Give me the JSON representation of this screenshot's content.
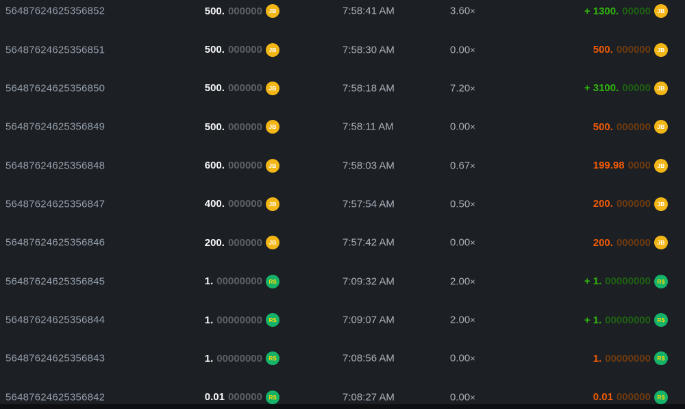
{
  "colors": {
    "background": "#1c1f24",
    "page_bottom": "#0d0f12",
    "id_text": "#96a0ab",
    "muted_text": "#a9b1ba",
    "bet_main": "#f5f6f7",
    "bet_zeros": "#5d6168",
    "win_main": "#30b50c",
    "win_dim": "#1e6212",
    "loss_main": "#f05a06",
    "loss_dim": "#6f3b10"
  },
  "currencies": {
    "jb": {
      "name": "jb-token",
      "label": "JB",
      "bg": "#f2b616",
      "fg": "#ffffff"
    },
    "brl": {
      "name": "brl-token",
      "label": "R$",
      "bg": "#15b369",
      "fg": "#ffd60a"
    }
  },
  "labels": {
    "multiplier_suffix": "×"
  },
  "table": {
    "rows": [
      {
        "id": "56487624625356852",
        "bet_main": "500.",
        "bet_zeros": "000000",
        "currency": "jb",
        "time": "7:58:41 AM",
        "multiplier": "3.60",
        "result": "win",
        "payout_main": "+ 1300.",
        "payout_zeros": "00000"
      },
      {
        "id": "56487624625356851",
        "bet_main": "500.",
        "bet_zeros": "000000",
        "currency": "jb",
        "time": "7:58:30 AM",
        "multiplier": "0.00",
        "result": "loss",
        "payout_main": "500.",
        "payout_zeros": "000000"
      },
      {
        "id": "56487624625356850",
        "bet_main": "500.",
        "bet_zeros": "000000",
        "currency": "jb",
        "time": "7:58:18 AM",
        "multiplier": "7.20",
        "result": "win",
        "payout_main": "+ 3100.",
        "payout_zeros": "00000"
      },
      {
        "id": "56487624625356849",
        "bet_main": "500.",
        "bet_zeros": "000000",
        "currency": "jb",
        "time": "7:58:11 AM",
        "multiplier": "0.00",
        "result": "loss",
        "payout_main": "500.",
        "payout_zeros": "000000"
      },
      {
        "id": "56487624625356848",
        "bet_main": "600.",
        "bet_zeros": "000000",
        "currency": "jb",
        "time": "7:58:03 AM",
        "multiplier": "0.67",
        "result": "loss",
        "payout_main": "199.98",
        "payout_zeros": "0000"
      },
      {
        "id": "56487624625356847",
        "bet_main": "400.",
        "bet_zeros": "000000",
        "currency": "jb",
        "time": "7:57:54 AM",
        "multiplier": "0.50",
        "result": "loss",
        "payout_main": "200.",
        "payout_zeros": "000000"
      },
      {
        "id": "56487624625356846",
        "bet_main": "200.",
        "bet_zeros": "000000",
        "currency": "jb",
        "time": "7:57:42 AM",
        "multiplier": "0.00",
        "result": "loss",
        "payout_main": "200.",
        "payout_zeros": "000000"
      },
      {
        "id": "56487624625356845",
        "bet_main": "1.",
        "bet_zeros": "00000000",
        "currency": "brl",
        "time": "7:09:32 AM",
        "multiplier": "2.00",
        "result": "win",
        "payout_main": "+ 1.",
        "payout_zeros": "00000000"
      },
      {
        "id": "56487624625356844",
        "bet_main": "1.",
        "bet_zeros": "00000000",
        "currency": "brl",
        "time": "7:09:07 AM",
        "multiplier": "2.00",
        "result": "win",
        "payout_main": "+ 1.",
        "payout_zeros": "00000000"
      },
      {
        "id": "56487624625356843",
        "bet_main": "1.",
        "bet_zeros": "00000000",
        "currency": "brl",
        "time": "7:08:56 AM",
        "multiplier": "0.00",
        "result": "loss",
        "payout_main": "1.",
        "payout_zeros": "00000000"
      },
      {
        "id": "56487624625356842",
        "bet_main": "0.01",
        "bet_zeros": "000000",
        "currency": "brl",
        "time": "7:08:27 AM",
        "multiplier": "0.00",
        "result": "loss",
        "payout_main": "0.01",
        "payout_zeros": "000000"
      }
    ]
  }
}
